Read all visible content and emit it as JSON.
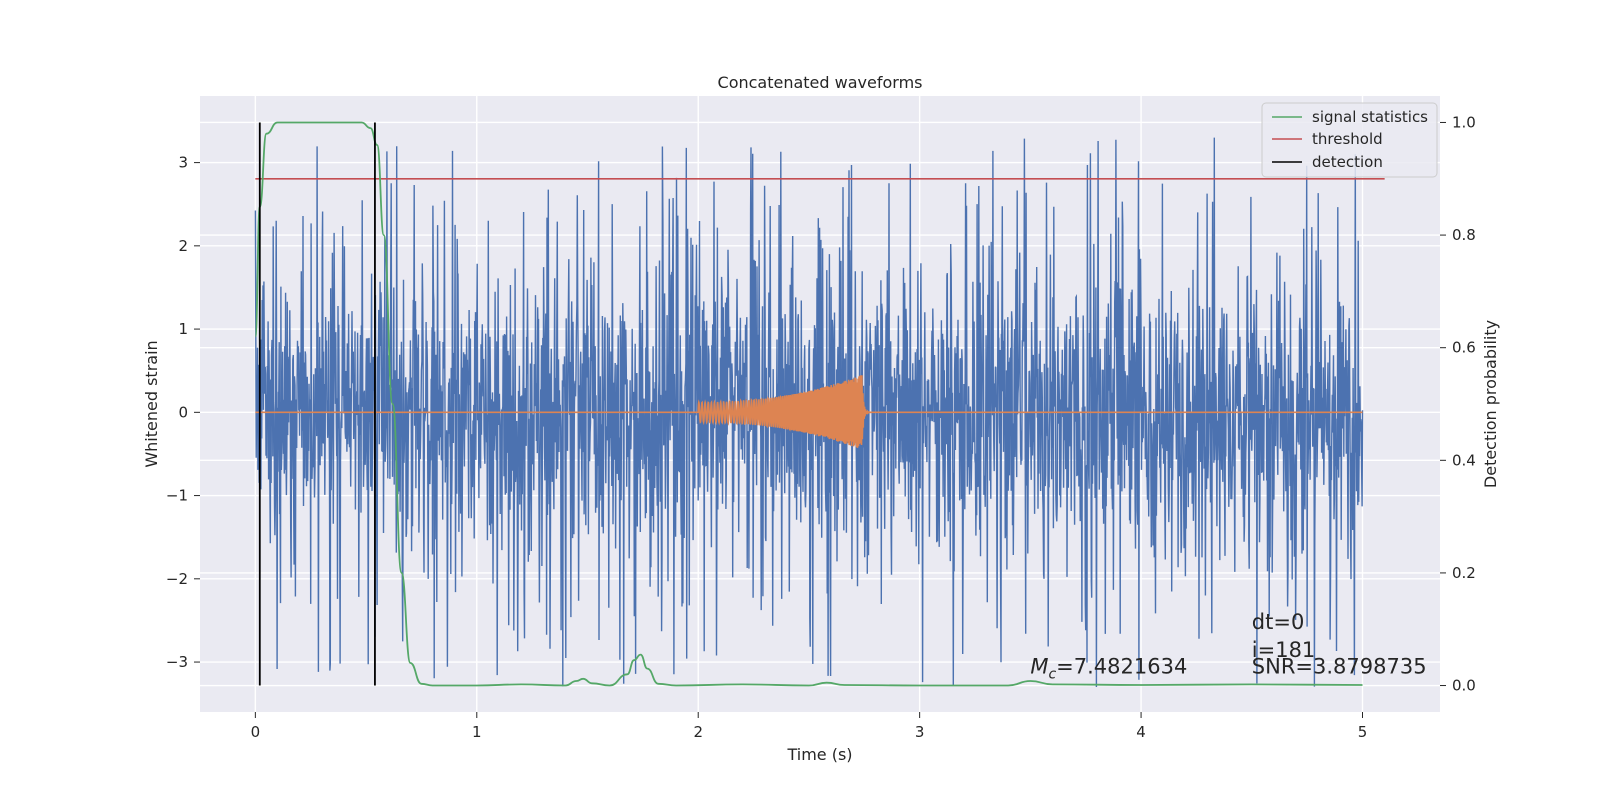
{
  "chart_data": {
    "type": "line",
    "title": "Concatenated waveforms",
    "xlabel": "Time (s)",
    "ylabel": "Whitened strain",
    "y2label": "Detection probability",
    "xlim": [
      -0.25,
      5.35
    ],
    "ylim": [
      -3.6,
      3.8
    ],
    "y2lim": [
      -0.047,
      1.047
    ],
    "xticks": [
      0,
      1,
      2,
      3,
      4,
      5
    ],
    "xtick_labels": [
      "0",
      "1",
      "2",
      "3",
      "4",
      "5"
    ],
    "yticks": [
      -3,
      -2,
      -1,
      0,
      1,
      2,
      3
    ],
    "ytick_labels": [
      "−3",
      "−2",
      "−1",
      "0",
      "1",
      "2",
      "3"
    ],
    "y2ticks": [
      0.0,
      0.2,
      0.4,
      0.6,
      0.8,
      1.0
    ],
    "y2tick_labels": [
      "0.0",
      "0.2",
      "0.4",
      "0.6",
      "0.8",
      "1.0"
    ],
    "grid": true,
    "legend": {
      "position": "top-right",
      "entries": [
        {
          "label": "signal statistics",
          "color": "#55a868"
        },
        {
          "label": "threshold",
          "color": "#c44e52"
        },
        {
          "label": "detection",
          "color": "#000000"
        }
      ]
    },
    "series": [
      {
        "name": "whitened strain (noise)",
        "color": "#4c72b0",
        "axis": "left",
        "x_range": [
          0,
          5
        ],
        "typical_amplitude": 1.5,
        "peak_amplitude": 3.3
      },
      {
        "name": "injected signal",
        "color": "#dd8452",
        "axis": "left",
        "x_range": [
          0,
          5
        ],
        "chirp_start": 2.0,
        "merger_time": 2.74,
        "peak_amplitude": 0.45,
        "value_elsewhere": 0
      },
      {
        "name": "signal statistics",
        "color": "#55a868",
        "axis": "right",
        "x": [
          0.0,
          0.02,
          0.05,
          0.1,
          0.2,
          0.3,
          0.4,
          0.48,
          0.52,
          0.55,
          0.58,
          0.62,
          0.66,
          0.7,
          0.75,
          0.8,
          1.0,
          1.2,
          1.4,
          1.45,
          1.48,
          1.52,
          1.6,
          1.68,
          1.71,
          1.74,
          1.77,
          1.82,
          1.9,
          2.2,
          2.5,
          2.58,
          2.66,
          3.0,
          3.4,
          3.5,
          3.6,
          4.0,
          4.5,
          5.0
        ],
        "values": [
          0.62,
          0.85,
          0.98,
          1.0,
          1.0,
          1.0,
          1.0,
          1.0,
          0.99,
          0.96,
          0.8,
          0.5,
          0.2,
          0.04,
          0.003,
          0.0,
          0.0,
          0.002,
          0.0,
          0.008,
          0.012,
          0.004,
          0.0,
          0.02,
          0.045,
          0.055,
          0.03,
          0.003,
          0.0,
          0.002,
          0.0,
          0.005,
          0.001,
          0.0,
          0.0,
          0.008,
          0.002,
          0.001,
          0.002,
          0.001
        ]
      },
      {
        "name": "threshold",
        "color": "#c44e52",
        "axis": "right",
        "x": [
          0.0,
          5.1
        ],
        "values": [
          0.9,
          0.9
        ]
      },
      {
        "name": "detection",
        "color": "#000000",
        "axis": "right",
        "x_positions": [
          0.02,
          0.54
        ],
        "y_range": [
          0.0,
          1.0
        ]
      }
    ],
    "annotations": [
      {
        "text": "dt=0",
        "x": 4.5,
        "y": -2.6
      },
      {
        "text": "i=181",
        "x": 4.5,
        "y": -2.94
      },
      {
        "text": "SNR=3.8798735",
        "x": 4.5,
        "y": -3.14
      },
      {
        "text": "=7.4821634",
        "symbol": "M",
        "subscript": "c",
        "x": 3.5,
        "y": -3.14
      }
    ]
  }
}
